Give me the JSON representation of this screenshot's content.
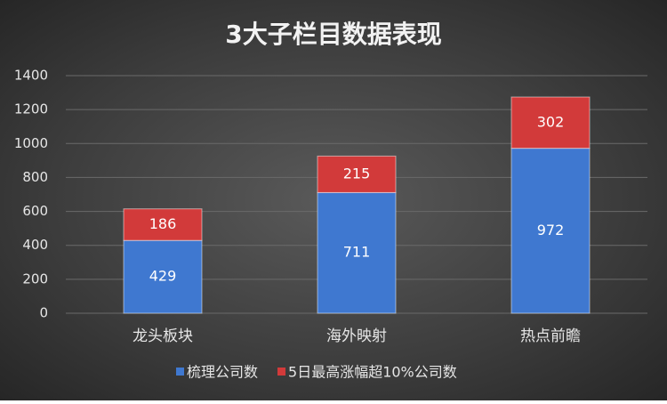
{
  "chart_data": {
    "type": "stacked-bar",
    "title": "3大子栏目数据表现",
    "categories": [
      "龙头板块",
      "海外映射",
      "热点前瞻"
    ],
    "series": [
      {
        "name": "梳理公司数",
        "color": "#3f78d0",
        "values": [
          429,
          711,
          972
        ]
      },
      {
        "name": "5日最高涨幅超10%公司数",
        "color": "#d23a3a",
        "values": [
          186,
          215,
          302
        ]
      }
    ],
    "ylim": [
      0,
      1400
    ],
    "yticks": [
      0,
      200,
      400,
      600,
      800,
      1000,
      1200,
      1400
    ],
    "grid": true,
    "legend": "bottom"
  }
}
